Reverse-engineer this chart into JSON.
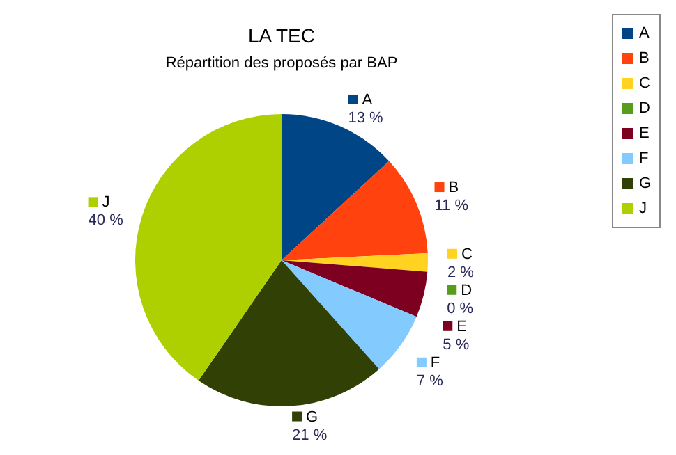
{
  "chart_data": {
    "type": "pie",
    "title": "LA TEC",
    "subtitle": "Répartition des proposés par BAP",
    "categories": [
      "A",
      "B",
      "C",
      "D",
      "E",
      "F",
      "G",
      "J"
    ],
    "values": [
      13,
      11,
      2,
      0,
      5,
      7,
      21,
      40
    ],
    "value_labels": [
      "13 %",
      "11 %",
      "2 %",
      "0 %",
      "5 %",
      "7 %",
      "21 %",
      "40 %"
    ],
    "colors": [
      "#004586",
      "#ff420e",
      "#ffd320",
      "#579d1c",
      "#7e0021",
      "#83caff",
      "#314004",
      "#aecf00"
    ],
    "legend": "top right"
  }
}
